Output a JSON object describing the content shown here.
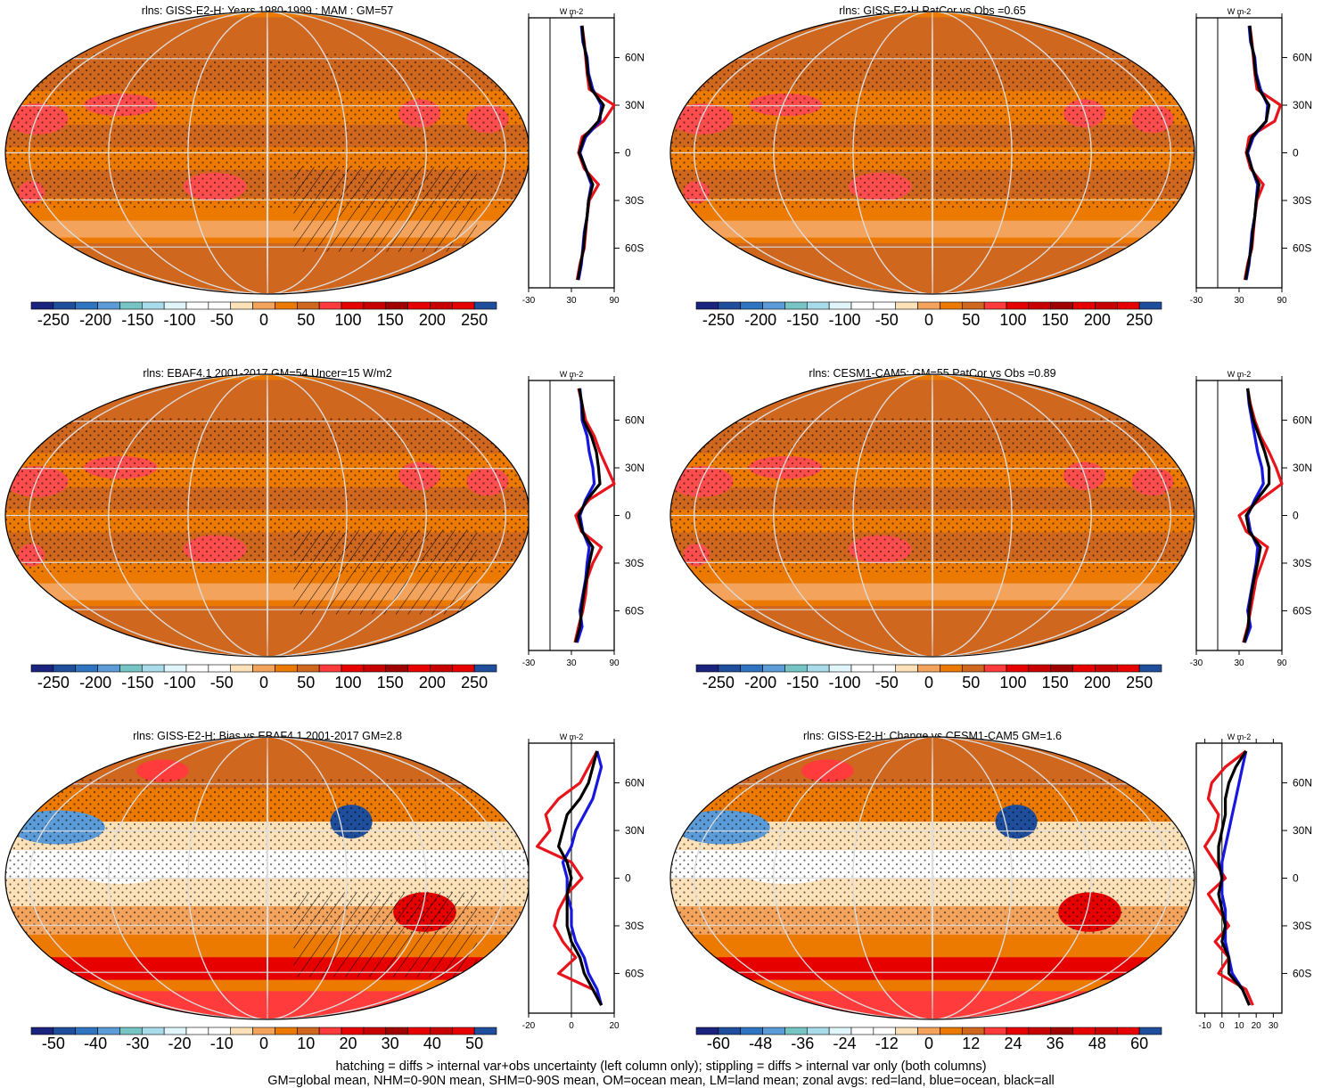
{
  "panels": [
    {
      "title": "rlns: GISS-E2-H: Years 1980-1999 : MAM : GM=57",
      "cbar_labels": [
        "-250",
        "-200",
        "-150",
        "-100",
        "-50",
        "0",
        "50",
        "100",
        "150",
        "200",
        "250"
      ],
      "style": "abs",
      "hatch": true,
      "zonal": {
        "unit": "W m-2",
        "xticks": [
          "-30",
          "30",
          "90"
        ],
        "xlim": [
          -30,
          90
        ],
        "ylabels": [
          "60N",
          "30N",
          "0",
          "30S",
          "60S"
        ]
      }
    },
    {
      "title": "rlns: GISS-E2-H PatCor vs Obs =0.65",
      "cbar_labels": [
        "-250",
        "-200",
        "-150",
        "-100",
        "-50",
        "0",
        "50",
        "100",
        "150",
        "200",
        "250"
      ],
      "style": "abs",
      "hatch": false,
      "zonal": {
        "unit": "W m-2",
        "xticks": [
          "-30",
          "30",
          "90"
        ],
        "xlim": [
          -30,
          90
        ],
        "ylabels": [
          "60N",
          "30N",
          "0",
          "30S",
          "60S"
        ]
      }
    },
    {
      "title": "rlns: EBAF4.1 2001-2017 GM=54 Uncer=15 W/m2",
      "cbar_labels": [
        "-250",
        "-200",
        "-150",
        "-100",
        "-50",
        "0",
        "50",
        "100",
        "150",
        "200",
        "250"
      ],
      "style": "abs",
      "hatch": true,
      "zonal": {
        "unit": "W m-2",
        "xticks": [
          "-30",
          "30",
          "90"
        ],
        "xlim": [
          -30,
          90
        ],
        "ylabels": [
          "60N",
          "30N",
          "0",
          "30S",
          "60S"
        ]
      }
    },
    {
      "title": "rlns: CESM1-CAM5: GM=55 PatCor vs Obs =0.89",
      "cbar_labels": [
        "-250",
        "-200",
        "-150",
        "-100",
        "-50",
        "0",
        "50",
        "100",
        "150",
        "200",
        "250"
      ],
      "style": "abs",
      "hatch": false,
      "zonal": {
        "unit": "W m-2",
        "xticks": [
          "-30",
          "30",
          "90"
        ],
        "xlim": [
          -30,
          90
        ],
        "ylabels": [
          "60N",
          "30N",
          "0",
          "30S",
          "60S"
        ]
      }
    },
    {
      "title": "rlns: GISS-E2-H: Bias vs EBAF4.1 2001-2017 GM=2.8",
      "cbar_labels": [
        "-50",
        "-40",
        "-30",
        "-20",
        "-10",
        "0",
        "10",
        "20",
        "30",
        "40",
        "50"
      ],
      "style": "diff",
      "hatch": true,
      "zonal": {
        "unit": "W m-2",
        "xticks": [
          "-20",
          "0",
          "20"
        ],
        "xlim": [
          -20,
          20
        ],
        "ylabels": [
          "60N",
          "30N",
          "0",
          "30S",
          "60S"
        ]
      }
    },
    {
      "title": "rlns: GISS-E2-H: Change vs CESM1-CAM5 GM=1.6",
      "cbar_labels": [
        "-60",
        "-48",
        "-36",
        "-24",
        "-12",
        "0",
        "12",
        "24",
        "36",
        "48",
        "60"
      ],
      "style": "diff",
      "hatch": false,
      "zonal": {
        "unit": "W m-2",
        "xticks": [
          "-10",
          "0",
          "10",
          "20",
          "30"
        ],
        "xlim": [
          -15,
          35
        ],
        "ylabels": [
          "60N",
          "30N",
          "0",
          "30S",
          "60S"
        ]
      }
    }
  ],
  "colorbar_colors": [
    "#1a237e",
    "#1f4e9c",
    "#2f74c0",
    "#5a9bd8",
    "#76c4c4",
    "#a9dcea",
    "#e0f6fb",
    "#ffffff",
    "#ffffff",
    "#fde1b8",
    "#f3a35c",
    "#ec7a00",
    "#cf671e",
    "#ff3b3b",
    "#e60000",
    "#c80000",
    "#a00000",
    "#e60000",
    "#c80000",
    "#e60000",
    "#1f4e9c"
  ],
  "series_colors": {
    "land": "#e8141b",
    "ocean": "#1717e0",
    "all": "#000000"
  },
  "footer": [
    "hatching = diffs > internal var+obs uncertainty (left column only); stippling = diffs > internal var only (both columns)",
    "GM=global mean, NHM=0-90N mean, SHM=0-90S mean, OM=ocean mean, LM=land mean; zonal avgs: red=land, blue=ocean, black=all"
  ],
  "chart_data": [
    {
      "type": "map+line",
      "title": "rlns: GISS-E2-H: Years 1980-1999 : MAM : GM=57",
      "lat": [
        80,
        70,
        60,
        50,
        40,
        30,
        20,
        10,
        0,
        -10,
        -20,
        -30,
        -40,
        -50,
        -60,
        -70,
        -80
      ],
      "series": [
        {
          "name": "red=land",
          "values": [
            45,
            48,
            50,
            52,
            55,
            90,
            75,
            45,
            40,
            48,
            68,
            55,
            52,
            50,
            48,
            42,
            38
          ]
        },
        {
          "name": "blue=ocean",
          "values": [
            44,
            46,
            52,
            54,
            60,
            72,
            70,
            50,
            42,
            50,
            58,
            54,
            52,
            48,
            46,
            44,
            40
          ]
        },
        {
          "name": "black=all",
          "values": [
            45,
            47,
            51,
            53,
            58,
            75,
            68,
            48,
            41,
            50,
            60,
            54,
            52,
            49,
            47,
            43,
            39
          ]
        }
      ]
    },
    {
      "type": "map+line",
      "title": "rlns: GISS-E2-H PatCor vs Obs =0.65",
      "lat": [
        80,
        70,
        60,
        50,
        40,
        30,
        20,
        10,
        0,
        -10,
        -20,
        -30,
        -40,
        -50,
        -60,
        -70,
        -80
      ],
      "series": [
        {
          "name": "red=land",
          "values": [
            45,
            48,
            50,
            52,
            55,
            88,
            80,
            44,
            40,
            46,
            64,
            55,
            52,
            50,
            48,
            42,
            38
          ]
        },
        {
          "name": "blue=ocean",
          "values": [
            44,
            46,
            52,
            54,
            60,
            70,
            68,
            50,
            42,
            48,
            56,
            54,
            52,
            48,
            46,
            44,
            40
          ]
        },
        {
          "name": "black=all",
          "values": [
            45,
            47,
            51,
            53,
            58,
            72,
            68,
            48,
            41,
            48,
            58,
            54,
            52,
            49,
            47,
            43,
            39
          ]
        }
      ]
    },
    {
      "type": "map+line",
      "title": "rlns: EBAF4.1 2001-2017 GM=54 Uncer=15 W/m2",
      "lat": [
        80,
        70,
        60,
        50,
        40,
        30,
        20,
        10,
        0,
        -10,
        -20,
        -30,
        -40,
        -50,
        -60,
        -70,
        -80
      ],
      "series": [
        {
          "name": "red=land",
          "values": [
            40,
            45,
            50,
            62,
            70,
            80,
            95,
            55,
            36,
            44,
            72,
            60,
            52,
            50,
            46,
            40,
            35
          ]
        },
        {
          "name": "blue=ocean",
          "values": [
            42,
            44,
            45,
            52,
            55,
            60,
            62,
            50,
            42,
            46,
            55,
            52,
            50,
            46,
            42,
            45,
            38
          ]
        },
        {
          "name": "black=all",
          "values": [
            41,
            45,
            47,
            58,
            65,
            68,
            70,
            52,
            40,
            45,
            60,
            55,
            51,
            47,
            44,
            42,
            36
          ]
        }
      ]
    },
    {
      "type": "map+line",
      "title": "rlns: CESM1-CAM5: GM=55 PatCor vs Obs =0.89",
      "lat": [
        80,
        70,
        60,
        50,
        40,
        30,
        20,
        10,
        0,
        -10,
        -20,
        -30,
        -40,
        -50,
        -60,
        -70,
        -80
      ],
      "series": [
        {
          "name": "red=land",
          "values": [
            42,
            46,
            52,
            60,
            72,
            82,
            95,
            60,
            30,
            40,
            70,
            62,
            54,
            50,
            46,
            42,
            36
          ]
        },
        {
          "name": "blue=ocean",
          "values": [
            42,
            44,
            48,
            52,
            56,
            62,
            64,
            52,
            42,
            46,
            56,
            54,
            50,
            46,
            42,
            46,
            38
          ]
        },
        {
          "name": "black=all",
          "values": [
            42,
            45,
            50,
            58,
            66,
            72,
            72,
            55,
            40,
            44,
            60,
            56,
            51,
            47,
            44,
            43,
            37
          ]
        }
      ]
    },
    {
      "type": "map+line",
      "title": "rlns: GISS-E2-H: Bias vs EBAF4.1 2001-2017 GM=2.8",
      "lat": [
        80,
        70,
        60,
        50,
        40,
        30,
        20,
        10,
        0,
        -10,
        -20,
        -30,
        -40,
        -50,
        -60,
        -70,
        -80
      ],
      "series": [
        {
          "name": "red=land",
          "values": [
            12,
            8,
            4,
            -6,
            -12,
            -10,
            -16,
            0,
            5,
            -2,
            -6,
            -8,
            -4,
            2,
            -6,
            10,
            14
          ]
        },
        {
          "name": "blue=ocean",
          "values": [
            12,
            14,
            12,
            10,
            6,
            2,
            0,
            -4,
            -2,
            -2,
            0,
            0,
            2,
            6,
            8,
            12,
            14
          ]
        },
        {
          "name": "black=all",
          "values": [
            12,
            10,
            8,
            4,
            -2,
            -4,
            -6,
            -2,
            0,
            -2,
            -2,
            -2,
            0,
            4,
            6,
            10,
            14
          ]
        }
      ]
    },
    {
      "type": "map+line",
      "title": "rlns: GISS-E2-H: Change vs CESM1-CAM5 GM=1.6",
      "lat": [
        80,
        70,
        60,
        50,
        40,
        30,
        20,
        10,
        0,
        -10,
        -20,
        -30,
        -40,
        -50,
        -60,
        -70,
        -80
      ],
      "series": [
        {
          "name": "red=land",
          "values": [
            14,
            2,
            -6,
            -8,
            -2,
            -4,
            -10,
            -4,
            2,
            -8,
            -2,
            4,
            -4,
            4,
            -2,
            14,
            18
          ]
        },
        {
          "name": "blue=ocean",
          "values": [
            14,
            12,
            10,
            8,
            6,
            4,
            2,
            0,
            0,
            0,
            2,
            2,
            2,
            4,
            6,
            12,
            16
          ]
        },
        {
          "name": "black=all",
          "values": [
            14,
            8,
            4,
            2,
            2,
            0,
            -2,
            -2,
            0,
            -2,
            0,
            2,
            0,
            4,
            4,
            12,
            16
          ]
        }
      ]
    }
  ]
}
